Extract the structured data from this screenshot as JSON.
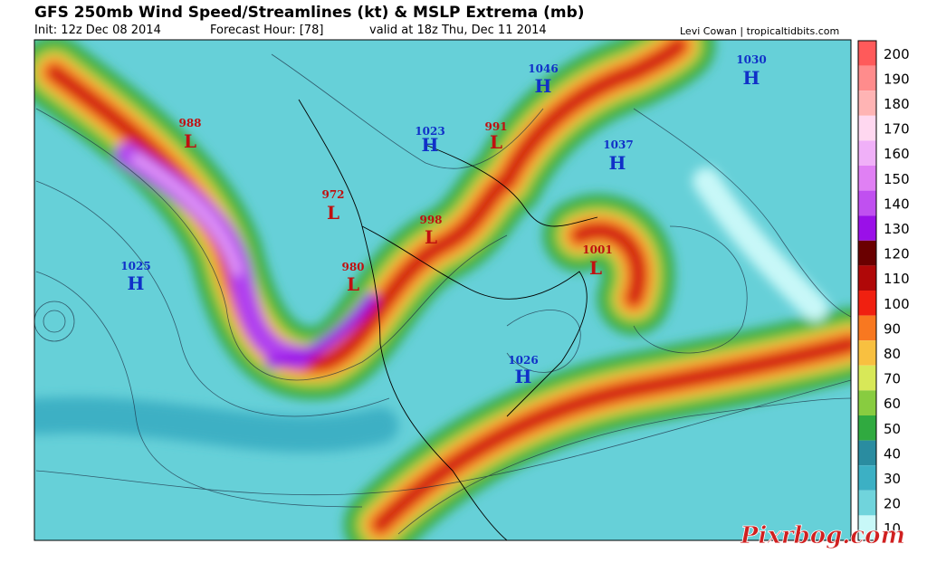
{
  "header": {
    "title": "GFS 250mb Wind Speed/Streamlines (kt) & MSLP Extrema (mb)",
    "init": "Init: 12z Dec 08 2014",
    "forecast_hour": "Forecast Hour: [78]",
    "valid": "valid at 18z Thu, Dec 11 2014",
    "credit": "Levi Cowan | tropicaltidbits.com"
  },
  "pressure_centers": [
    {
      "value": 988,
      "symbol": "L"
    },
    {
      "value": 972,
      "symbol": "L"
    },
    {
      "value": 980,
      "symbol": "L"
    },
    {
      "value": 998,
      "symbol": "L"
    },
    {
      "value": 991,
      "symbol": "L"
    },
    {
      "value": 1023,
      "symbol": "H"
    },
    {
      "value": 1046,
      "symbol": "H"
    },
    {
      "value": 1037,
      "symbol": "H"
    },
    {
      "value": 1030,
      "symbol": "H"
    },
    {
      "value": 1025,
      "symbol": "H"
    },
    {
      "value": 1026,
      "symbol": "H"
    },
    {
      "value": 1001,
      "symbol": "L"
    }
  ],
  "colorbar": {
    "ticks": [
      200,
      190,
      180,
      170,
      160,
      150,
      140,
      130,
      120,
      110,
      100,
      90,
      80,
      70,
      60,
      50,
      40,
      30,
      20,
      10
    ],
    "colors": [
      "#ff5a5a",
      "#ff8c8c",
      "#ffb4b4",
      "#ffd8f0",
      "#f0b0f8",
      "#e080f4",
      "#c050f0",
      "#9a10e8",
      "#6a0000",
      "#b00808",
      "#f02010",
      "#f87820",
      "#f8c040",
      "#d8e858",
      "#88cc40",
      "#30aa40",
      "#2a8ca0",
      "#3cb0c4",
      "#70d4dc",
      "#c8f8f8"
    ]
  },
  "watermark": "Pixrbog.com"
}
